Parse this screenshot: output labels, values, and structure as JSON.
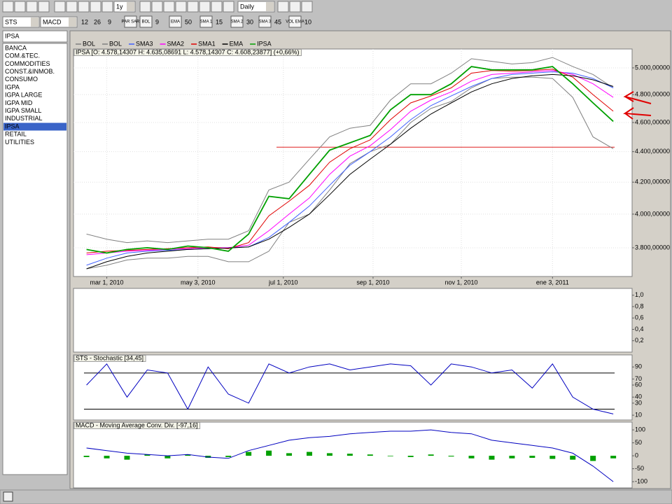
{
  "toolbar": {
    "period": "1y",
    "interval": "Daily",
    "indicator1": "STS",
    "indicator2": "MACD",
    "macd_params": [
      "12",
      "26",
      "9"
    ],
    "indicators": [
      {
        "icon": "PAR SAR"
      },
      {
        "icon": "BOL",
        "param": "9"
      },
      {
        "icon": "EMA",
        "param": "50"
      },
      {
        "icon": "SMA 1",
        "param": "15"
      },
      {
        "icon": "SMA 2",
        "param": "30"
      },
      {
        "icon": "SMA 3",
        "param": "45"
      },
      {
        "icon": "VOL EMA",
        "param": "10"
      }
    ]
  },
  "sidebar": {
    "title": "IPSA",
    "items": [
      "BANCA",
      "COM.&TEC.",
      "COMMODITIES",
      "CONST.&INMOB.",
      "CONSUMO",
      "IGPA",
      "IGPA LARGE",
      "IGPA MID",
      "IGPA SMALL",
      "INDUSTRIAL",
      "IPSA",
      "RETAIL",
      "UTILITIES"
    ],
    "selected": 10
  },
  "chart_data": [
    {
      "type": "line",
      "title": "IPSA [O: 4.578,14307  H: 4.635,08691  L: 4.578,14307  C: 4.608,23877] (+0,66%)",
      "log_scale": true,
      "grid": true,
      "x": [
        "2010-02-15",
        "2010-03-01",
        "2010-03-15",
        "2010-03-29",
        "2010-04-12",
        "2010-04-26",
        "2010-05-10",
        "2010-05-24",
        "2010-06-07",
        "2010-06-21",
        "2010-07-05",
        "2010-07-19",
        "2010-08-02",
        "2010-08-16",
        "2010-08-30",
        "2010-09-13",
        "2010-09-27",
        "2010-10-11",
        "2010-10-25",
        "2010-11-08",
        "2010-11-22",
        "2010-12-06",
        "2010-12-20",
        "2011-01-03",
        "2011-01-17",
        "2011-01-31",
        "2011-02-14"
      ],
      "xlim": [
        "2010-02-06",
        "2011-02-27"
      ],
      "xticks": [
        {
          "value": "2010-03-01",
          "label": "mar 1, 2010"
        },
        {
          "value": "2010-05-03",
          "label": "may 3, 2010"
        },
        {
          "value": "2010-07-01",
          "label": "jul 1, 2010"
        },
        {
          "value": "2010-09-01",
          "label": "sep 1, 2010"
        },
        {
          "value": "2010-11-01",
          "label": "nov 1, 2010"
        },
        {
          "value": "2011-01-03",
          "label": "ene 3, 2011"
        }
      ],
      "ylim": [
        3637,
        5146
      ],
      "yticks": [
        {
          "value": 3800,
          "label": "3.800,00000"
        },
        {
          "value": 4000,
          "label": "4.000,00000"
        },
        {
          "value": 4200,
          "label": "4.200,00000"
        },
        {
          "value": 4400,
          "label": "4.400,00000"
        },
        {
          "value": 4600,
          "label": "4.600,00000"
        },
        {
          "value": 4800,
          "label": "4.800,00000"
        },
        {
          "value": 5000,
          "label": "5.000,00000"
        }
      ],
      "hlines": [
        {
          "value": 4430,
          "color": "#e02020"
        }
      ],
      "series": [
        {
          "name": "BOL",
          "color": "#808080",
          "values": [
            3880,
            3850,
            3830,
            3840,
            3830,
            3840,
            3850,
            3850,
            3900,
            4150,
            4200,
            4350,
            4500,
            4560,
            4580,
            4760,
            4880,
            4880,
            4960,
            5070,
            5050,
            5030,
            5040,
            5080,
            5010,
            4950,
            4850
          ]
        },
        {
          "name": "BOL",
          "color": "#808080",
          "values": [
            3680,
            3700,
            3730,
            3740,
            3740,
            3750,
            3750,
            3720,
            3720,
            3780,
            3950,
            4000,
            4150,
            4320,
            4400,
            4450,
            4600,
            4700,
            4750,
            4850,
            4920,
            4930,
            4930,
            4920,
            4780,
            4500,
            4420
          ]
        },
        {
          "name": "SMA3",
          "color": "#4060ff",
          "values": [
            3700,
            3740,
            3770,
            3780,
            3785,
            3790,
            3795,
            3800,
            3805,
            3860,
            3950,
            4050,
            4180,
            4310,
            4400,
            4500,
            4620,
            4720,
            4790,
            4860,
            4920,
            4950,
            4960,
            4970,
            4960,
            4920,
            4850
          ]
        },
        {
          "name": "SMA2",
          "color": "#ff00ff",
          "values": [
            3760,
            3770,
            3780,
            3785,
            3790,
            3795,
            3800,
            3800,
            3815,
            3900,
            4000,
            4100,
            4250,
            4370,
            4440,
            4550,
            4680,
            4760,
            4820,
            4900,
            4950,
            4960,
            4970,
            4980,
            4950,
            4880,
            4780
          ]
        },
        {
          "name": "SMA1",
          "color": "#e00000",
          "values": [
            3770,
            3780,
            3785,
            3790,
            3795,
            3800,
            3805,
            3795,
            3830,
            3990,
            4080,
            4180,
            4330,
            4420,
            4480,
            4620,
            4740,
            4790,
            4850,
            4960,
            4980,
            4975,
            4980,
            4990,
            4930,
            4800,
            4680
          ]
        },
        {
          "name": "EMA",
          "color": "#000000",
          "values": [
            3680,
            3720,
            3750,
            3770,
            3780,
            3790,
            3795,
            3798,
            3805,
            3850,
            3920,
            4000,
            4120,
            4250,
            4350,
            4450,
            4560,
            4660,
            4740,
            4820,
            4880,
            4920,
            4940,
            4950,
            4940,
            4910,
            4860
          ]
        },
        {
          "name": "IPSA",
          "color": "#00a000",
          "values": [
            3790,
            3770,
            3790,
            3800,
            3790,
            3810,
            3800,
            3780,
            3880,
            4110,
            4095,
            4250,
            4410,
            4460,
            4510,
            4690,
            4800,
            4800,
            4880,
            5010,
            4985,
            4985,
            4985,
            5010,
            4880,
            4740,
            4608
          ]
        }
      ]
    },
    {
      "type": "line",
      "ylim": [
        0,
        1.12
      ],
      "yticks": [
        {
          "value": 0.2,
          "label": "0,2"
        },
        {
          "value": 0.4,
          "label": "0,4"
        },
        {
          "value": 0.6,
          "label": "0,6"
        },
        {
          "value": 0.8,
          "label": "0,8"
        },
        {
          "value": 1,
          "label": "1,0"
        }
      ],
      "series": []
    },
    {
      "type": "line",
      "title": "STS - Stochastic [34,45]",
      "ylim": [
        2,
        110
      ],
      "yticks": [
        10,
        30,
        40,
        60,
        70,
        90
      ],
      "hlines": [
        {
          "value": 80,
          "color": "#000000"
        },
        {
          "value": 20,
          "color": "#000000"
        }
      ],
      "series": [
        {
          "type": "line",
          "color": "#0000c0",
          "values": [
            60,
            95,
            40,
            85,
            80,
            20,
            90,
            45,
            30,
            95,
            80,
            90,
            95,
            85,
            90,
            95,
            92,
            60,
            95,
            90,
            80,
            85,
            55,
            95,
            40,
            20,
            12
          ]
        }
      ]
    },
    {
      "type": "line",
      "title": "MACD - Moving Average Conv. Div. [-97,16]",
      "ylim": [
        -124,
        130
      ],
      "yticks": [
        -100,
        -50,
        0,
        50,
        100
      ],
      "series": [
        {
          "type": "bar",
          "color": "#00a000",
          "values": [
            -5,
            -10,
            -15,
            5,
            -10,
            5,
            -8,
            -5,
            15,
            20,
            10,
            15,
            10,
            8,
            5,
            -2,
            -5,
            5,
            -3,
            -10,
            -15,
            -10,
            -8,
            -12,
            -15,
            -20,
            -10
          ]
        },
        {
          "type": "line",
          "color": "#0000c0",
          "values": [
            30,
            20,
            10,
            5,
            0,
            5,
            -5,
            -10,
            20,
            40,
            60,
            70,
            75,
            85,
            90,
            95,
            95,
            100,
            90,
            85,
            60,
            50,
            40,
            30,
            10,
            -40,
            -100
          ]
        }
      ]
    }
  ]
}
